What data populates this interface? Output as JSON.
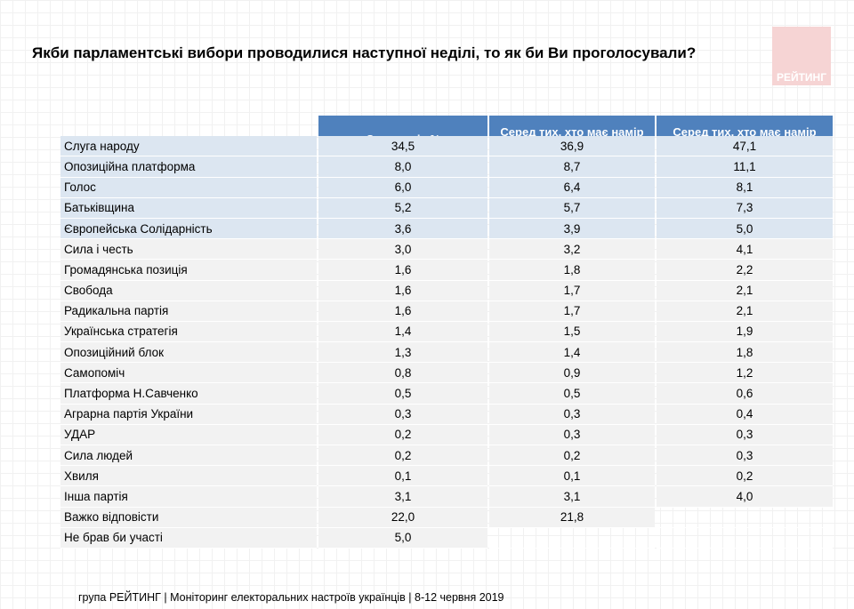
{
  "title": "Якби парламентські вибори проводилися наступної неділі, то як би Ви проголосували?",
  "logo": {
    "text": "РЕЙТИНГ"
  },
  "table": {
    "headers": [
      "Серед усіх %",
      "Серед тих, хто має намір голосувати, %",
      "Серед тих, хто має намір голосувати і визначився, %"
    ],
    "rows": [
      {
        "name": "Слуга народу",
        "all": "34,5",
        "intend": "36,9",
        "decided": "47,1"
      },
      {
        "name": "Опозиційна платформа",
        "all": "8,0",
        "intend": "8,7",
        "decided": "11,1"
      },
      {
        "name": "Голос",
        "all": "6,0",
        "intend": "6,4",
        "decided": "8,1"
      },
      {
        "name": "Батьківщина",
        "all": "5,2",
        "intend": "5,7",
        "decided": "7,3"
      },
      {
        "name": "Європейська Солідарність",
        "all": "3,6",
        "intend": "3,9",
        "decided": "5,0"
      },
      {
        "name": "Сила і честь",
        "all": "3,0",
        "intend": "3,2",
        "decided": "4,1"
      },
      {
        "name": "Громадянська позиція",
        "all": "1,6",
        "intend": "1,8",
        "decided": "2,2"
      },
      {
        "name": "Свобода",
        "all": "1,6",
        "intend": "1,7",
        "decided": "2,1"
      },
      {
        "name": "Радикальна партія",
        "all": "1,6",
        "intend": "1,7",
        "decided": "2,1"
      },
      {
        "name": "Українська стратегія",
        "all": "1,4",
        "intend": "1,5",
        "decided": "1,9"
      },
      {
        "name": "Опозиційний блок",
        "all": "1,3",
        "intend": "1,4",
        "decided": "1,8"
      },
      {
        "name": "Самопоміч",
        "all": "0,8",
        "intend": "0,9",
        "decided": "1,2"
      },
      {
        "name": "Платформа Н.Савченко",
        "all": "0,5",
        "intend": "0,5",
        "decided": "0,6"
      },
      {
        "name": "Аграрна партія України",
        "all": "0,3",
        "intend": "0,3",
        "decided": "0,4"
      },
      {
        "name": "УДАР",
        "all": "0,2",
        "intend": "0,3",
        "decided": "0,3"
      },
      {
        "name": "Сила людей",
        "all": "0,2",
        "intend": "0,2",
        "decided": "0,3"
      },
      {
        "name": "Хвиля",
        "all": "0,1",
        "intend": "0,1",
        "decided": "0,2"
      },
      {
        "name": "Інша партія",
        "all": "3,1",
        "intend": "3,1",
        "decided": "4,0"
      },
      {
        "name": "Важко відповісти",
        "all": "22,0",
        "intend": "21,8",
        "decided": ""
      },
      {
        "name": "Не брав би участі",
        "all": "5,0",
        "intend": "",
        "decided": ""
      }
    ],
    "highlighted_rows": 5,
    "colors": {
      "header": "#4f81bd",
      "highlight": "#dce6f1",
      "plain": "#f2f2f2"
    }
  },
  "footer": "група РЕЙТИНГ | Моніторинг електоральних настроїв українців  | 8-12 червня 2019"
}
